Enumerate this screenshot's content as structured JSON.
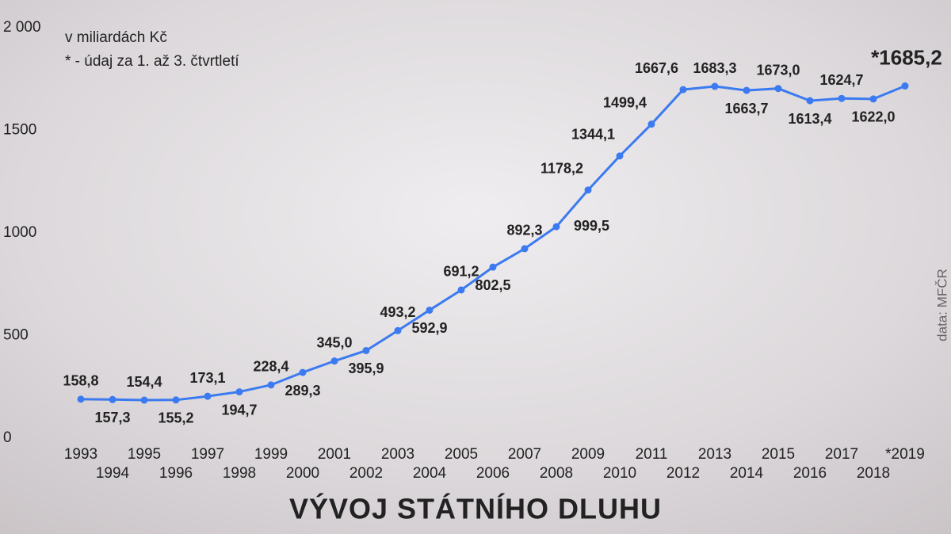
{
  "chart_data": {
    "type": "line",
    "title": "VÝVOJ STÁTNÍHO DLUHU",
    "subtitle": "v miliardách Kč",
    "annotations": [
      "* - údaj za 1. až 3. čtvrtletí",
      "data: MFČR"
    ],
    "categories": [
      "1993",
      "1994",
      "1995",
      "1996",
      "1997",
      "1998",
      "1999",
      "2000",
      "2001",
      "2002",
      "2003",
      "2004",
      "2005",
      "2006",
      "2007",
      "2008",
      "2009",
      "2010",
      "2011",
      "2012",
      "2013",
      "2014",
      "2015",
      "2016",
      "2017",
      "2018",
      "*2019"
    ],
    "values": [
      158.8,
      157.3,
      154.4,
      155.2,
      173.1,
      194.7,
      228.4,
      289.3,
      345.0,
      395.9,
      493.2,
      592.9,
      691.2,
      802.5,
      892.3,
      999.5,
      1178.2,
      1344.1,
      1499.4,
      1667.6,
      1683.3,
      1663.7,
      1673.0,
      1613.4,
      1624.7,
      1622.0,
      1685.2
    ],
    "value_labels": [
      "158,8",
      "157,3",
      "154,4",
      "155,2",
      "173,1",
      "194,7",
      "228,4",
      "289,3",
      "345,0",
      "395,9",
      "493,2",
      "592,9",
      "691,2",
      "802,5",
      "892,3",
      "999,5",
      "1178,2",
      "1344,1",
      "1499,4",
      "1667,6",
      "1683,3",
      "1663,7",
      "1673,0",
      "1613,4",
      "1624,7",
      "1622,0",
      "*1685,2"
    ],
    "color": "#3b7af0",
    "ylim": [
      0,
      2000
    ],
    "yticks": [
      0,
      500,
      1000,
      1500,
      {
        "value": 2000,
        "label": "2 000"
      }
    ]
  }
}
